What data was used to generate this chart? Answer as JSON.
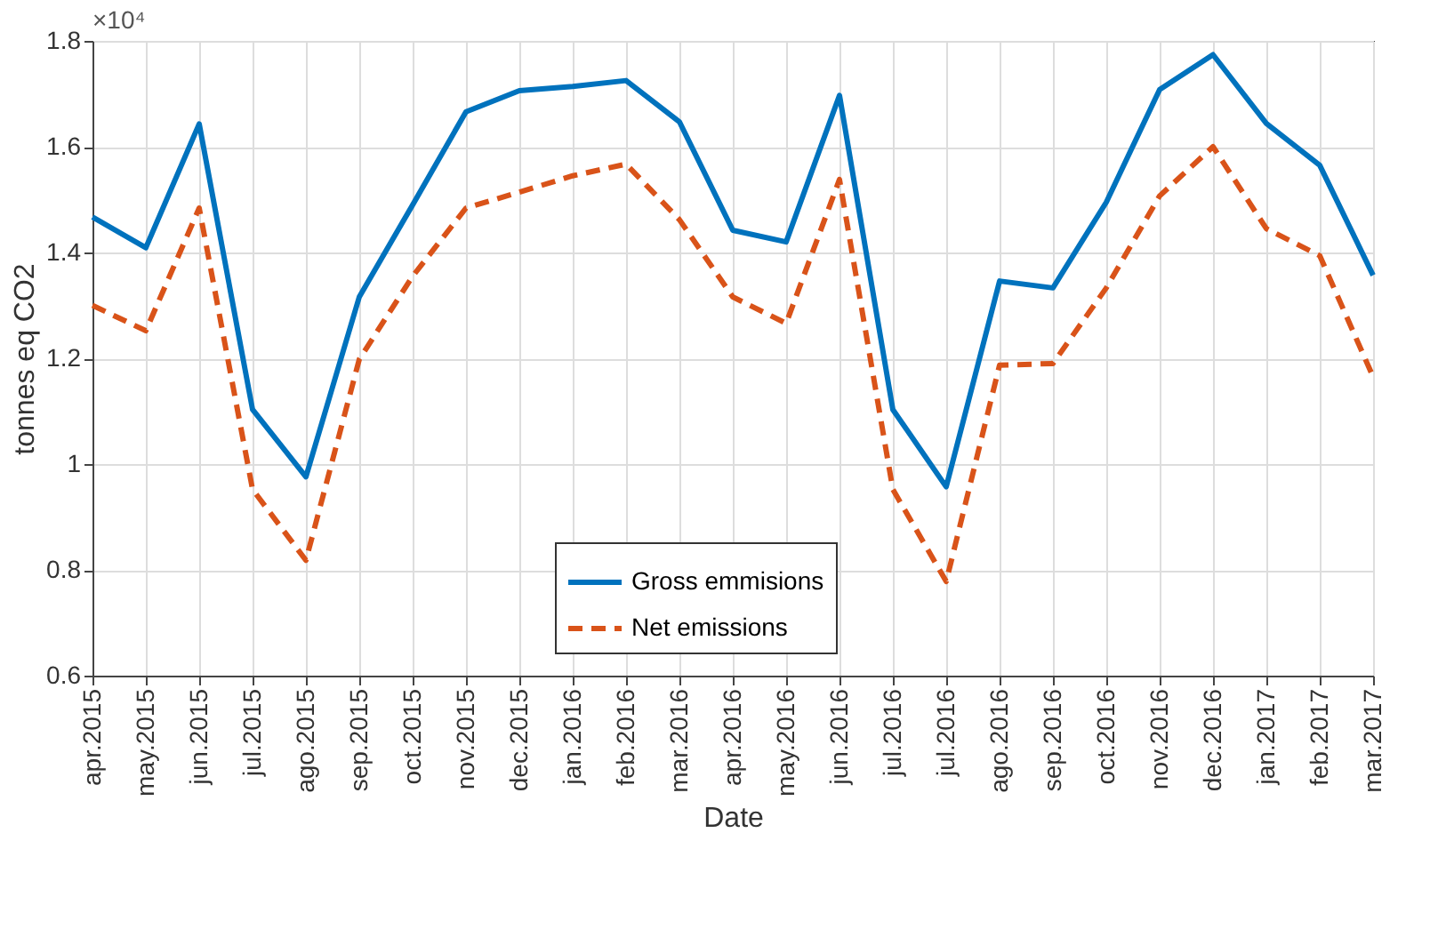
{
  "chart_data": {
    "type": "line",
    "xlabel": "Date",
    "ylabel": "tonnes eq CO2",
    "categories": [
      "apr.2015",
      "may.2015",
      "jun.2015",
      "jul.2015",
      "ago.2015",
      "sep.2015",
      "oct.2015",
      "nov.2015",
      "dec.2015",
      "jan.2016",
      "feb.2016",
      "mar.2016",
      "apr.2016",
      "may.2016",
      "jun.2016",
      "jul.2016",
      "jul.2016",
      "ago.2016",
      "sep.2016",
      "oct.2016",
      "nov.2016",
      "dec.2016",
      "jan.2017",
      "feb.2017",
      "mar.2017"
    ],
    "series": [
      {
        "name": "Gross emmisions",
        "color": "#0072bd",
        "line_style": "solid",
        "values": [
          1.467,
          1.409,
          1.643,
          1.103,
          0.976,
          1.316,
          1.49,
          1.666,
          1.706,
          1.714,
          1.725,
          1.647,
          1.442,
          1.42,
          1.697,
          1.103,
          0.957,
          1.346,
          1.333,
          1.495,
          1.708,
          1.774,
          1.644,
          1.565,
          1.357
        ]
      },
      {
        "name": "Net emissions",
        "color": "#d95319",
        "line_style": "dashed",
        "values": [
          1.3,
          1.252,
          1.484,
          0.952,
          0.818,
          1.198,
          1.355,
          1.484,
          1.514,
          1.545,
          1.567,
          1.462,
          1.316,
          1.266,
          1.538,
          0.952,
          0.778,
          1.187,
          1.19,
          1.333,
          1.507,
          1.6,
          1.445,
          1.394,
          1.165
        ]
      }
    ],
    "ylim": [
      0.6,
      1.8
    ],
    "yticks": [
      0.6,
      0.8,
      1,
      1.2,
      1.4,
      1.6,
      1.8
    ],
    "annotations": [
      "×10⁴"
    ],
    "grid": true,
    "legend": "bottom",
    "marker": "none"
  }
}
